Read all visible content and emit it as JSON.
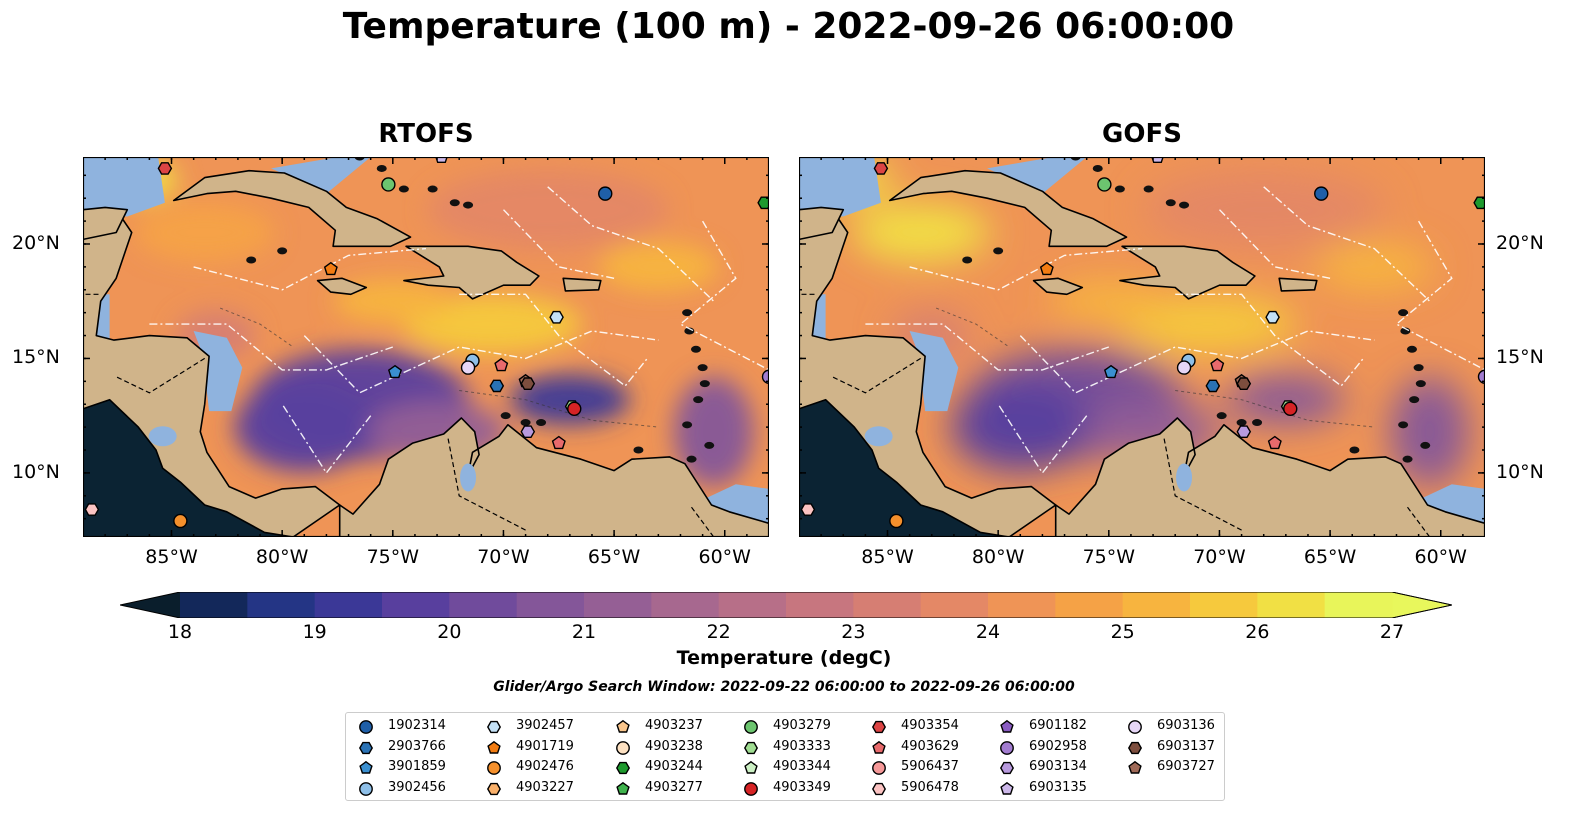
{
  "figure": {
    "title": "Temperature (100 m) - 2022-09-26 06:00:00",
    "panels": [
      {
        "title": "RTOFS",
        "lat_tick_side": "left"
      },
      {
        "title": "GOFS",
        "lat_tick_side": "right"
      }
    ],
    "lon_ticks": [
      "85°W",
      "80°W",
      "75°W",
      "70°W",
      "65°W",
      "60°W"
    ],
    "lat_ticks": [
      "20°N",
      "15°N",
      "10°N"
    ],
    "extent": {
      "lon": [
        -89,
        -58
      ],
      "lat": [
        7.2,
        23.8
      ]
    },
    "colorbar": {
      "label": "Temperature (degC)",
      "ticks": [
        "18",
        "19",
        "20",
        "21",
        "22",
        "23",
        "24",
        "25",
        "26",
        "27"
      ],
      "min": 18,
      "max": 27,
      "step": 0.5,
      "extend": "both",
      "colors": [
        "#0d2235",
        "#13285a",
        "#243585",
        "#3b3897",
        "#583f9e",
        "#704b9c",
        "#845699",
        "#955f95",
        "#a7688f",
        "#b76f88",
        "#c7767f",
        "#d67e73",
        "#e48866",
        "#ef9456",
        "#f5a246",
        "#f7b43f",
        "#f6c93d",
        "#f1e044",
        "#e8f55a"
      ],
      "under_color": "#0a1e2c",
      "over_color": "#e8f75c"
    },
    "search_window": "Glider/Argo Search Window: 2022-09-22 06:00:00 to 2022-09-26 06:00:00",
    "map_colors": {
      "land": "#d0b48a",
      "shelf": "#8fb3de",
      "pacific": "#0b2333",
      "coast": "#000000"
    },
    "legend": [
      {
        "id": "1902314",
        "marker": "circle",
        "color": "#1f5fa8"
      },
      {
        "id": "2903766",
        "marker": "hexagon",
        "color": "#2a72b5"
      },
      {
        "id": "3901859",
        "marker": "pentagon",
        "color": "#3a8fd0"
      },
      {
        "id": "3902456",
        "marker": "circle",
        "color": "#8ebfe8"
      },
      {
        "id": "3902457",
        "marker": "hexagon",
        "color": "#c4e1f6"
      },
      {
        "id": "4901719",
        "marker": "pentagon",
        "color": "#f27c12"
      },
      {
        "id": "4902476",
        "marker": "circle",
        "color": "#f5902c"
      },
      {
        "id": "4903227",
        "marker": "hexagon",
        "color": "#f9b06a"
      },
      {
        "id": "4903237",
        "marker": "pentagon",
        "color": "#fac68c"
      },
      {
        "id": "4903238",
        "marker": "circle",
        "color": "#fde1c2"
      },
      {
        "id": "4903244",
        "marker": "hexagon",
        "color": "#1e9a2e"
      },
      {
        "id": "4903277",
        "marker": "pentagon",
        "color": "#3fb34d"
      },
      {
        "id": "4903279",
        "marker": "circle",
        "color": "#6cc56f"
      },
      {
        "id": "4903333",
        "marker": "hexagon",
        "color": "#a0dd92"
      },
      {
        "id": "4903344",
        "marker": "pentagon",
        "color": "#ccf0c4"
      },
      {
        "id": "4903349",
        "marker": "circle",
        "color": "#d62325"
      },
      {
        "id": "4903354",
        "marker": "hexagon",
        "color": "#dc4444"
      },
      {
        "id": "4903629",
        "marker": "pentagon",
        "color": "#e86a6c"
      },
      {
        "id": "5906437",
        "marker": "circle",
        "color": "#f59898"
      },
      {
        "id": "5906478",
        "marker": "hexagon",
        "color": "#fbc3c2"
      },
      {
        "id": "6901182",
        "marker": "pentagon",
        "color": "#8a5cc2"
      },
      {
        "id": "6902958",
        "marker": "circle",
        "color": "#a27cd0"
      },
      {
        "id": "6903134",
        "marker": "hexagon",
        "color": "#b89ade"
      },
      {
        "id": "6903135",
        "marker": "pentagon",
        "color": "#cdb8ea"
      },
      {
        "id": "6903136",
        "marker": "circle",
        "color": "#e6d6f6"
      },
      {
        "id": "6903137",
        "marker": "hexagon",
        "color": "#7d4e3e"
      },
      {
        "id": "6903727",
        "marker": "pentagon",
        "color": "#a06a58"
      }
    ],
    "floats": [
      {
        "id": "4903354",
        "lon": -85.3,
        "lat": 23.3
      },
      {
        "id": "1902314",
        "lon": -65.4,
        "lat": 22.2
      },
      {
        "id": "4903244",
        "lon": -58.2,
        "lat": 21.8
      },
      {
        "id": "4903279",
        "lon": -75.2,
        "lat": 22.6
      },
      {
        "id": "6903135",
        "lon": -72.8,
        "lat": 23.8
      },
      {
        "id": "4901719",
        "lon": -77.8,
        "lat": 18.9
      },
      {
        "id": "3902457",
        "lon": -67.6,
        "lat": 16.8
      },
      {
        "id": "3901859",
        "lon": -74.9,
        "lat": 14.4
      },
      {
        "id": "3902456",
        "lon": -71.4,
        "lat": 14.9
      },
      {
        "id": "6903136",
        "lon": -71.6,
        "lat": 14.6
      },
      {
        "id": "4903629",
        "lon": -70.1,
        "lat": 14.7
      },
      {
        "id": "2903766",
        "lon": -70.3,
        "lat": 13.8
      },
      {
        "id": "6903727",
        "lon": -69.0,
        "lat": 14.0
      },
      {
        "id": "6903137",
        "lon": -68.9,
        "lat": 13.9
      },
      {
        "id": "4903333",
        "lon": -66.9,
        "lat": 12.9
      },
      {
        "id": "4903349",
        "lon": -66.8,
        "lat": 12.8
      },
      {
        "id": "6903134",
        "lon": -68.9,
        "lat": 11.8
      },
      {
        "id": "4903629",
        "lon": -67.5,
        "lat": 11.3
      },
      {
        "id": "6902958",
        "lon": -58.0,
        "lat": 14.2
      },
      {
        "id": "4902476",
        "lon": -84.6,
        "lat": 7.9
      },
      {
        "id": "5906478",
        "lon": -88.6,
        "lat": 8.4
      }
    ]
  }
}
